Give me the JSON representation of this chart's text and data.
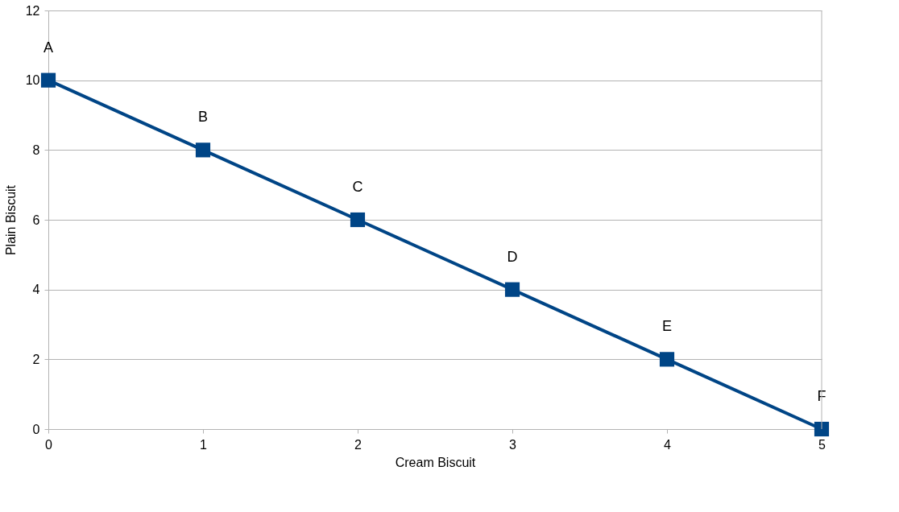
{
  "chart_data": {
    "type": "line",
    "xlabel": "Cream Biscuit",
    "ylabel": "Plain Biscuit",
    "x": [
      0,
      1,
      2,
      3,
      4,
      5
    ],
    "series": [
      {
        "color": "#004586",
        "values": [
          10,
          8,
          6,
          4,
          2,
          0
        ]
      }
    ],
    "xlim": [
      0,
      5
    ],
    "xticks": [
      0,
      1,
      2,
      3,
      4,
      5
    ],
    "ylim": [
      0,
      12
    ],
    "yticks": [
      0,
      2,
      4,
      6,
      8,
      10,
      12
    ],
    "grid": "y",
    "marker": "square",
    "line_style": "solid",
    "annotations": [
      {
        "text": "A",
        "x": 0,
        "y": 10
      },
      {
        "text": "B",
        "x": 1,
        "y": 8
      },
      {
        "text": "C",
        "x": 2,
        "y": 6
      },
      {
        "text": "D",
        "x": 3,
        "y": 4
      },
      {
        "text": "E",
        "x": 4,
        "y": 2
      },
      {
        "text": "F",
        "x": 5,
        "y": 0
      }
    ]
  }
}
